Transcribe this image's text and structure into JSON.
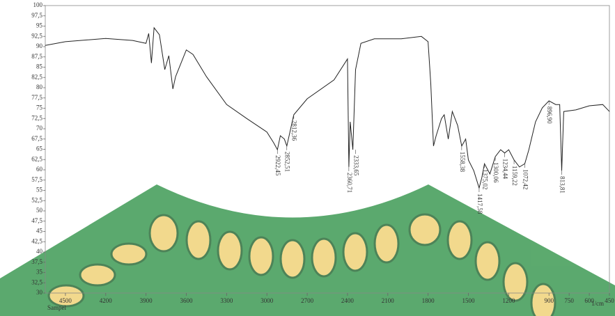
{
  "chart_data": {
    "type": "line",
    "color": "#222222",
    "x": [
      4650,
      4500,
      4200,
      4000,
      3900,
      3880,
      3860,
      3840,
      3800,
      3760,
      3730,
      3700,
      3680,
      3600,
      3550,
      3450,
      3300,
      3150,
      3000,
      2950,
      2922,
      2900,
      2870,
      2852,
      2800,
      2700,
      2500,
      2400,
      2390,
      2380,
      2360,
      2340,
      2300,
      2200,
      2000,
      1850,
      1800,
      1780,
      1760,
      1740,
      1700,
      1680,
      1650,
      1620,
      1580,
      1550,
      1520,
      1500,
      1460,
      1420,
      1400,
      1380,
      1340,
      1300,
      1260,
      1230,
      1200,
      1160,
      1120,
      1080,
      1050,
      1000,
      950,
      900,
      850,
      820,
      805,
      790,
      700,
      600,
      500,
      450
    ],
    "values": [
      90.3,
      91.2,
      92,
      91.5,
      90.8,
      93.2,
      86,
      94.6,
      92.9,
      84.4,
      87.8,
      79.7,
      82.7,
      89.2,
      88.1,
      82.7,
      75.9,
      72.5,
      69.2,
      66.6,
      64.9,
      68.3,
      67.5,
      65.8,
      73.4,
      77.3,
      81.9,
      87,
      60.7,
      71.7,
      64.9,
      84.4,
      90.8,
      91.9,
      91.9,
      92.5,
      91.2,
      81,
      65.8,
      68.3,
      72.5,
      73.4,
      67.5,
      74.2,
      70.8,
      65.8,
      67.5,
      62.4,
      59.8,
      55.6,
      58.1,
      61.5,
      59,
      63.2,
      64.9,
      64.1,
      64.9,
      62.4,
      60.7,
      61.5,
      64.9,
      71.7,
      75.1,
      76.8,
      75.9,
      75.9,
      59.8,
      74.2,
      74.6,
      75.6,
      75.9,
      74.2
    ],
    "xlim": [
      4650,
      450
    ],
    "xticks": [
      4500,
      4200,
      3900,
      3600,
      3300,
      3000,
      2700,
      2400,
      2100,
      1800,
      1500,
      1200,
      900,
      750,
      600,
      450
    ],
    "ylim": [
      30,
      100
    ],
    "yticks": [
      30,
      {
        "value": 32.5,
        "label": "32,5"
      },
      35,
      {
        "value": 37.5,
        "label": "37,5"
      },
      40,
      {
        "value": 42.5,
        "label": "42,5"
      },
      45,
      {
        "value": 47.5,
        "label": "47,5"
      },
      50,
      {
        "value": 52.5,
        "label": "52,5"
      },
      55,
      {
        "value": 57.5,
        "label": "57,5"
      },
      60,
      {
        "value": 62.5,
        "label": "62,5"
      },
      65,
      {
        "value": 67.5,
        "label": "67,5"
      },
      70,
      {
        "value": 72.5,
        "label": "72,5"
      },
      75,
      {
        "value": 77.5,
        "label": "77,5"
      },
      80,
      {
        "value": 82.5,
        "label": "82,5"
      },
      85,
      {
        "value": 87.5,
        "label": "87,5"
      },
      90,
      {
        "value": 92.5,
        "label": "92,5"
      },
      95,
      {
        "value": 97.5,
        "label": "97,5"
      },
      100
    ],
    "xlabel": "1/cm",
    "series_label": "Sampel",
    "annotations": [
      {
        "x": 2922,
        "y": 64.9,
        "label": "2922,45"
      },
      {
        "x": 2852,
        "y": 65.8,
        "label": "2852,51"
      },
      {
        "x": 2800,
        "y": 73.4,
        "label": "2812,36"
      },
      {
        "x": 2390,
        "y": 60.7,
        "label": "2360,71"
      },
      {
        "x": 2340,
        "y": 64.9,
        "label": "2333,65"
      },
      {
        "x": 1550,
        "y": 65.8,
        "label": "1558,38"
      },
      {
        "x": 1420,
        "y": 55.6,
        "label": "1417,58"
      },
      {
        "x": 1380,
        "y": 61.5,
        "label": "1375,02"
      },
      {
        "x": 1300,
        "y": 63.2,
        "label": "1300,06"
      },
      {
        "x": 1230,
        "y": 64.1,
        "label": "1234,44"
      },
      {
        "x": 1160,
        "y": 62.4,
        "label": "1159,22"
      },
      {
        "x": 1080,
        "y": 61.5,
        "label": "1072,42"
      },
      {
        "x": 900,
        "y": 76.8,
        "label": "896,90"
      },
      {
        "x": 805,
        "y": 59.8,
        "label": "813,81"
      }
    ]
  }
}
